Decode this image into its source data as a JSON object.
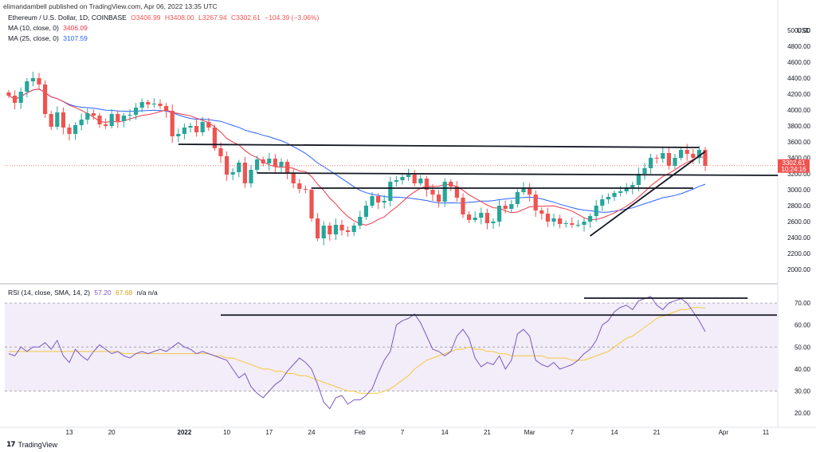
{
  "header": {
    "publisher": "elimandambell published on TradingView.com, Apr 06, 2022 13:35 UTC"
  },
  "legend": {
    "symbol": "Ethereum / U.S. Dollar, 1D, COINBASE",
    "open": "O3406.99",
    "high": "H3408.00",
    "low": "L3267.94",
    "close": "C3302.61",
    "change": "−104.39 (−3.06%)",
    "ma10_label": "MA (10, close, 0)",
    "ma10_value": "3406.09",
    "ma25_label": "MA (25, close, 0)",
    "ma25_value": "3107.59",
    "rsi_label": "RSI (14, close, SMA, 14, 2)",
    "rsi_value": "57.20",
    "rsi_ma_value": "67.68",
    "rsi_na": "n/a  n/a"
  },
  "price_label": {
    "value": "3302.61",
    "countdown": "10:24:16"
  },
  "brand": {
    "text": "TradingView"
  },
  "colors": {
    "up": "#26a69a",
    "down": "#ef5350",
    "ma10": "#f23645",
    "ma25": "#2962ff",
    "rsi": "#7e57c2",
    "rsi_ma": "#f5c842",
    "trendline": "#131722"
  },
  "chart_data": [
    {
      "type": "candlestick",
      "title": "Ethereum / U.S. Dollar, 1D, COINBASE",
      "y_unit": "USD",
      "ylim": [
        1900,
        5100
      ],
      "y_ticks": [
        2000,
        2200,
        2400,
        2600,
        2800,
        3000,
        3200,
        3400,
        3600,
        3800,
        4000,
        4200,
        4400,
        4600,
        4800,
        5000
      ],
      "x_ticks": [
        "13",
        "20",
        "2022",
        "10",
        "17",
        "24",
        "Feb",
        "7",
        "14",
        "21",
        "Mar",
        "7",
        "14",
        "21",
        "Apr",
        "11"
      ],
      "x_tick_day_index": [
        10,
        17,
        29,
        36,
        43,
        50,
        58,
        65,
        72,
        79,
        86,
        93,
        100,
        107,
        118,
        125
      ],
      "closes": [
        4180,
        4090,
        4230,
        4360,
        4400,
        4320,
        3950,
        3790,
        3970,
        3780,
        3700,
        3810,
        3880,
        3960,
        3930,
        3820,
        3800,
        3950,
        3860,
        3930,
        3940,
        4030,
        4100,
        4070,
        4080,
        4050,
        3990,
        3670,
        3700,
        3780,
        3800,
        3720,
        3850,
        3780,
        3520,
        3420,
        3190,
        3220,
        3340,
        3080,
        3250,
        3380,
        3330,
        3390,
        3290,
        3350,
        3200,
        3080,
        3010,
        3000,
        2640,
        2390,
        2550,
        2440,
        2560,
        2490,
        2470,
        2550,
        2660,
        2800,
        2920,
        2840,
        2860,
        3100,
        3120,
        3160,
        3190,
        3080,
        3140,
        3000,
        2940,
        2850,
        3100,
        3040,
        2900,
        2690,
        2620,
        2650,
        2710,
        2580,
        2600,
        2800,
        2760,
        2820,
        2970,
        3020,
        2940,
        2740,
        2700,
        2600,
        2640,
        2570,
        2580,
        2560,
        2560,
        2600,
        2670,
        2800,
        2880,
        2910,
        2960,
        2980,
        3030,
        3060,
        3200,
        3270,
        3400,
        3390,
        3460,
        3300,
        3400,
        3500,
        3450,
        3400,
        3500,
        3300
      ],
      "series": [
        {
          "name": "MA (10, close, 0)",
          "last": 3406.09
        },
        {
          "name": "MA (25, close, 0)",
          "last": 3107.59
        }
      ],
      "last_price": 3302.61
    },
    {
      "type": "line",
      "title": "RSI (14, close, SMA, 14, 2)",
      "ylim": [
        15,
        78
      ],
      "y_ticks": [
        20,
        30,
        40,
        50,
        60,
        70
      ],
      "bands": [
        30,
        50,
        70
      ],
      "series": [
        {
          "name": "RSI",
          "values": [
            47,
            46,
            50,
            48,
            50,
            50,
            52,
            49,
            53,
            46,
            43,
            49,
            46,
            44,
            48,
            51,
            49,
            47,
            48,
            46,
            45,
            47,
            48,
            47,
            48,
            49,
            48,
            50,
            52,
            50,
            49,
            47,
            48,
            47,
            46,
            45,
            44,
            40,
            36,
            38,
            32,
            29,
            27,
            30,
            33,
            35,
            39,
            42,
            45,
            43,
            40,
            33,
            25,
            22,
            27,
            28,
            24,
            26,
            26,
            28,
            31,
            38,
            44,
            48,
            60,
            62,
            63,
            65,
            61,
            55,
            49,
            48,
            46,
            48,
            55,
            58,
            54,
            45,
            41,
            43,
            42,
            46,
            40,
            44,
            56,
            58,
            55,
            44,
            42,
            41,
            43,
            40,
            41,
            42,
            44,
            47,
            49,
            53,
            60,
            62,
            66,
            68,
            69,
            67,
            71,
            72,
            73,
            69,
            67,
            70,
            71,
            72,
            70,
            66,
            62,
            57
          ]
        },
        {
          "name": "RSI MA",
          "values": [
            48,
            48,
            48,
            48,
            48,
            48,
            48,
            48,
            48,
            48,
            48,
            48,
            48,
            48,
            48,
            48,
            48,
            48,
            48,
            47,
            47,
            47,
            47,
            47,
            47,
            47,
            47,
            47,
            47,
            47,
            47,
            47,
            47,
            47,
            46,
            46,
            45,
            45,
            44,
            43,
            42,
            41,
            40,
            40,
            39,
            39,
            38,
            38,
            37,
            37,
            36,
            35,
            34,
            33,
            32,
            31,
            30,
            30,
            29,
            29,
            29,
            29,
            30,
            31,
            33,
            35,
            37,
            40,
            42,
            44,
            45,
            46,
            47,
            48,
            49,
            49,
            50,
            49,
            49,
            48,
            48,
            47,
            47,
            46,
            46,
            46,
            46,
            46,
            46,
            45,
            45,
            45,
            45,
            44,
            44,
            44,
            45,
            46,
            47,
            48,
            50,
            52,
            54,
            55,
            57,
            59,
            61,
            63,
            64,
            65,
            66,
            67,
            67,
            68,
            68,
            67.68
          ]
        }
      ],
      "last_value": 57.2
    }
  ]
}
